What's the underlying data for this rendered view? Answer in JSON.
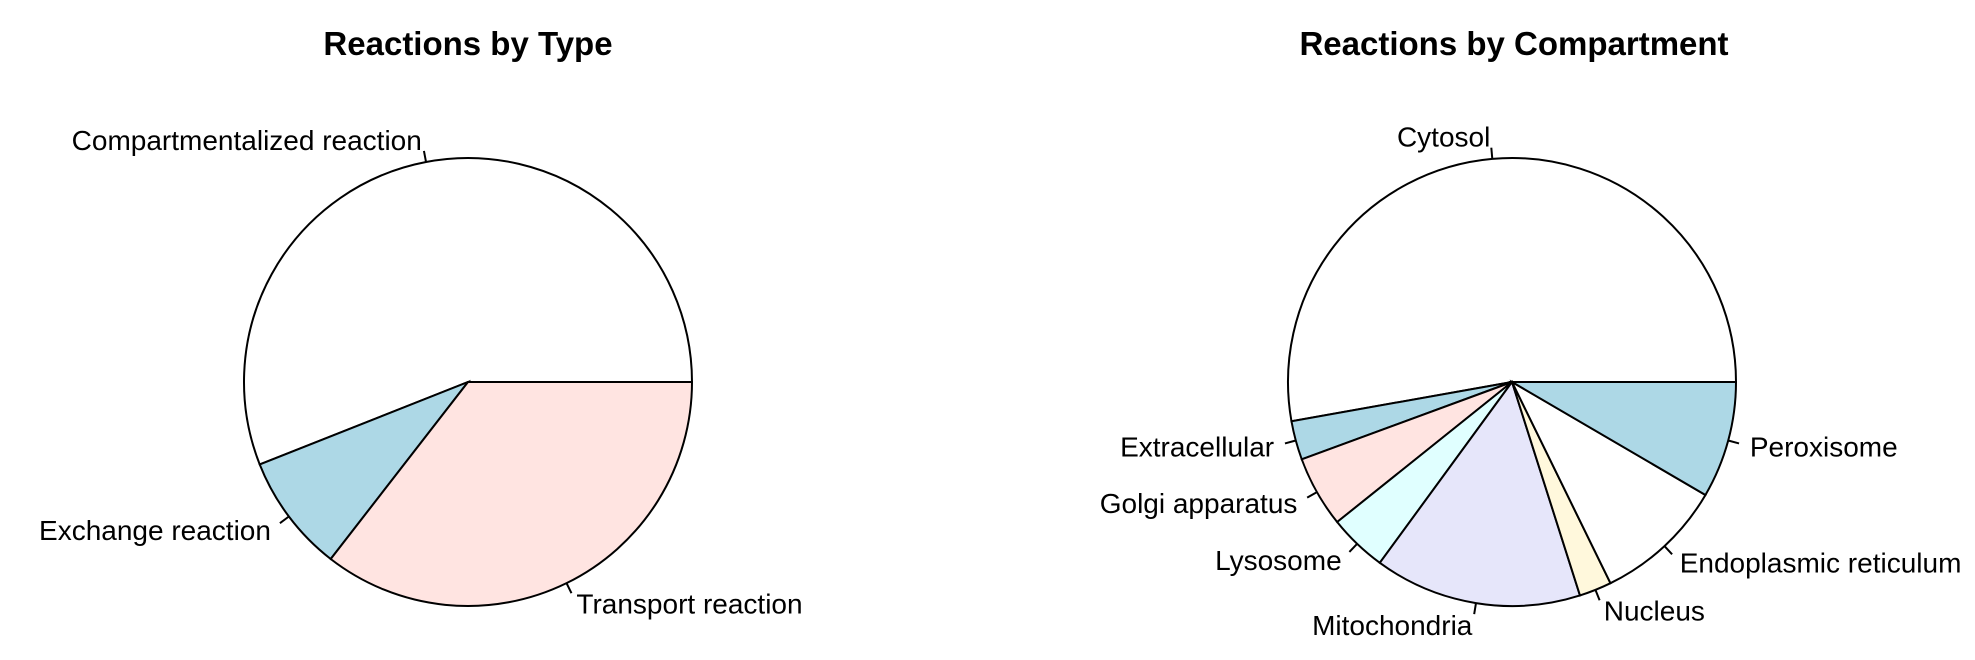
{
  "chart_data": [
    {
      "type": "pie",
      "title": "Reactions by Type",
      "start_angle_deg": 0,
      "direction": "counterclockwise",
      "slices": [
        {
          "label": "Compartmentalized reaction",
          "value": 56.0,
          "color": "#ffffff"
        },
        {
          "label": "Exchange reaction",
          "value": 8.5,
          "color": "#add8e6"
        },
        {
          "label": "Transport reaction",
          "value": 35.5,
          "color": "#ffe4e1"
        }
      ]
    },
    {
      "type": "pie",
      "title": "Reactions by Compartment",
      "start_angle_deg": 0,
      "direction": "counterclockwise",
      "slices": [
        {
          "label": "Cytosol",
          "value": 56.5,
          "color": "#ffffff"
        },
        {
          "label": "Extracellular",
          "value": 3.0,
          "color": "#add8e6"
        },
        {
          "label": "Golgi apparatus",
          "value": 5.5,
          "color": "#ffe4e1"
        },
        {
          "label": "Lysosome",
          "value": 4.5,
          "color": "#e0ffff"
        },
        {
          "label": "Mitochondria",
          "value": 16.0,
          "color": "#e6e6fa"
        },
        {
          "label": "Nucleus",
          "value": 2.5,
          "color": "#fff8dc"
        },
        {
          "label": "Endoplasmic reticulum",
          "value": 10.0,
          "color": "#ffffff"
        },
        {
          "label": "Peroxisome",
          "value": 9.0,
          "color": "#add8e6"
        }
      ]
    }
  ]
}
